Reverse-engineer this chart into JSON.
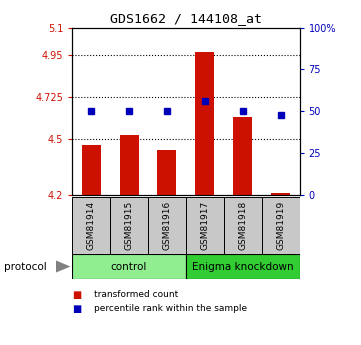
{
  "title": "GDS1662 / 144108_at",
  "samples": [
    "GSM81914",
    "GSM81915",
    "GSM81916",
    "GSM81917",
    "GSM81918",
    "GSM81919"
  ],
  "red_values": [
    4.47,
    4.52,
    4.44,
    4.97,
    4.62,
    4.21
  ],
  "blue_values": [
    50,
    50,
    50,
    56,
    50,
    48
  ],
  "ylim_left": [
    4.2,
    5.1
  ],
  "ylim_right": [
    0,
    100
  ],
  "yticks_left": [
    4.2,
    4.5,
    4.725,
    4.95,
    5.1
  ],
  "ytick_labels_left": [
    "4.2",
    "4.5",
    "4.725",
    "4.95",
    "5.1"
  ],
  "yticks_right": [
    0,
    25,
    50,
    75,
    100
  ],
  "ytick_labels_right": [
    "0",
    "25",
    "50",
    "75",
    "100%"
  ],
  "hlines": [
    4.5,
    4.725,
    4.95
  ],
  "group_labels": [
    "control",
    "Enigma knockdown"
  ],
  "group_ranges": [
    [
      0,
      3
    ],
    [
      3,
      6
    ]
  ],
  "group_colors": [
    "#90EE90",
    "#32CD32"
  ],
  "protocol_label": "protocol",
  "bar_color": "#CC1100",
  "dot_color": "#0000BB",
  "bar_width": 0.5,
  "legend_items": [
    "transformed count",
    "percentile rank within the sample"
  ],
  "legend_colors": [
    "#CC1100",
    "#0000BB"
  ],
  "left_label_color": "#CC1100",
  "right_label_color": "#0000BB",
  "sample_box_color": "#C8C8C8",
  "base_value": 4.2,
  "fig_width": 3.61,
  "fig_height": 3.45,
  "fig_dpi": 100
}
